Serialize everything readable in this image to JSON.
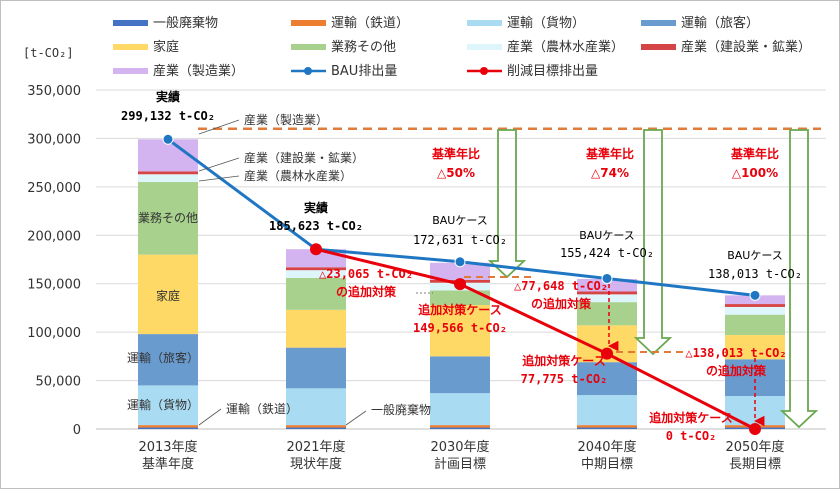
{
  "chart_data": {
    "type": "bar",
    "unit_label": "[t-CO₂]",
    "ylim": [
      0,
      350000
    ],
    "y_ticks": [
      "0",
      "50,000",
      "100,000",
      "150,000",
      "200,000",
      "250,000",
      "300,000",
      "350,000"
    ],
    "y_tick_values": [
      0,
      50000,
      100000,
      150000,
      200000,
      250000,
      300000,
      350000
    ],
    "categories": [
      "2013年度",
      "2021年度",
      "2030年度",
      "2040年度",
      "2050年度"
    ],
    "category_sublabels": [
      "基準年度",
      "現状年度",
      "計画目標",
      "中期目標",
      "長期目標"
    ],
    "series": [
      {
        "name": "一般廃棄物",
        "color": "#4472c4",
        "values": [
          1500,
          1500,
          1500,
          1500,
          1500
        ]
      },
      {
        "name": "運輸（鉄道）",
        "color": "#ed7d31",
        "values": [
          2500,
          2500,
          2500,
          2500,
          2500
        ]
      },
      {
        "name": "運輸（貨物）",
        "color": "#a9dcf2",
        "values": [
          41000,
          38000,
          33000,
          31000,
          30000
        ]
      },
      {
        "name": "運輸（旅客）",
        "color": "#6a9bcf",
        "values": [
          53000,
          42000,
          38000,
          34000,
          38000
        ]
      },
      {
        "name": "家庭",
        "color": "#ffd966",
        "values": [
          82000,
          39000,
          53000,
          38000,
          25000
        ]
      },
      {
        "name": "業務その他",
        "color": "#a9d18e",
        "values": [
          75000,
          33000,
          15000,
          24000,
          21000
        ]
      },
      {
        "name": "産業（農林水産業）",
        "color": "#ddf5fb",
        "values": [
          8000,
          8000,
          8000,
          8000,
          8000
        ]
      },
      {
        "name": "産業（建設業・鉱業）",
        "color": "#d64545",
        "values": [
          3000,
          3000,
          3000,
          3000,
          3000
        ]
      },
      {
        "name": "産業（製造業）",
        "color": "#d3b3f0",
        "values": [
          33132,
          18623,
          17631,
          12924,
          9013
        ]
      }
    ],
    "lines": [
      {
        "name": "BAU排出量",
        "color": "#1f77c4",
        "values": [
          299132,
          185623,
          172631,
          155424,
          138013
        ]
      },
      {
        "name": "削減目標排出量",
        "color": "#e8000b",
        "values": [
          null,
          185623,
          149566,
          77775,
          0
        ]
      }
    ],
    "legend": [
      "一般廃棄物",
      "運輸（鉄道）",
      "運輸（貨物）",
      "運輸（旅客）",
      "家庭",
      "業務その他",
      "産業（農林水産業）",
      "産業（建設業・鉱業）",
      "産業（製造業）",
      "BAU排出量",
      "削減目標排出量"
    ],
    "baseline_reference": 310000,
    "annotations": {
      "actual_2013": [
        "実績",
        "299,132 t-CO₂"
      ],
      "actual_2021": [
        "実績",
        "185,623 t-CO₂"
      ],
      "bau_2030": [
        "BAUケース",
        "172,631 t-CO₂"
      ],
      "bau_2040": [
        "BAUケース",
        "155,424 t-CO₂"
      ],
      "bau_2050": [
        "BAUケース",
        "138,013 t-CO₂"
      ],
      "ratio_2030": [
        "基準年比",
        "△50%"
      ],
      "ratio_2040": [
        "基準年比",
        "△74%"
      ],
      "ratio_2050": [
        "基準年比",
        "△100%"
      ],
      "add_2030": [
        "△23,065 t-CO₂",
        "の追加対策"
      ],
      "add_2040": [
        "△77,648 t-CO₂",
        "の追加対策"
      ],
      "add_2050": [
        "△138,013 t-CO₂",
        "の追加対策"
      ],
      "target_2030": [
        "追加対策ケース",
        "149,566 t-CO₂"
      ],
      "target_2040": [
        "追加対策ケース",
        "77,775 t-CO₂"
      ],
      "target_2050": [
        "追加対策ケース",
        "0 t-CO₂"
      ]
    },
    "segment_labels": {
      "manufacturing_callout": "産業（製造業）",
      "construction_callout": "産業（建設業・鉱業）",
      "agriculture_callout": "産業（農林水産業）",
      "business": "業務その他",
      "household": "家庭",
      "passenger": "運輸（旅客）",
      "freight": "運輸（貨物）",
      "rail_callout": "運輸（鉄道）",
      "waste_callout": "一般廃棄物"
    }
  }
}
